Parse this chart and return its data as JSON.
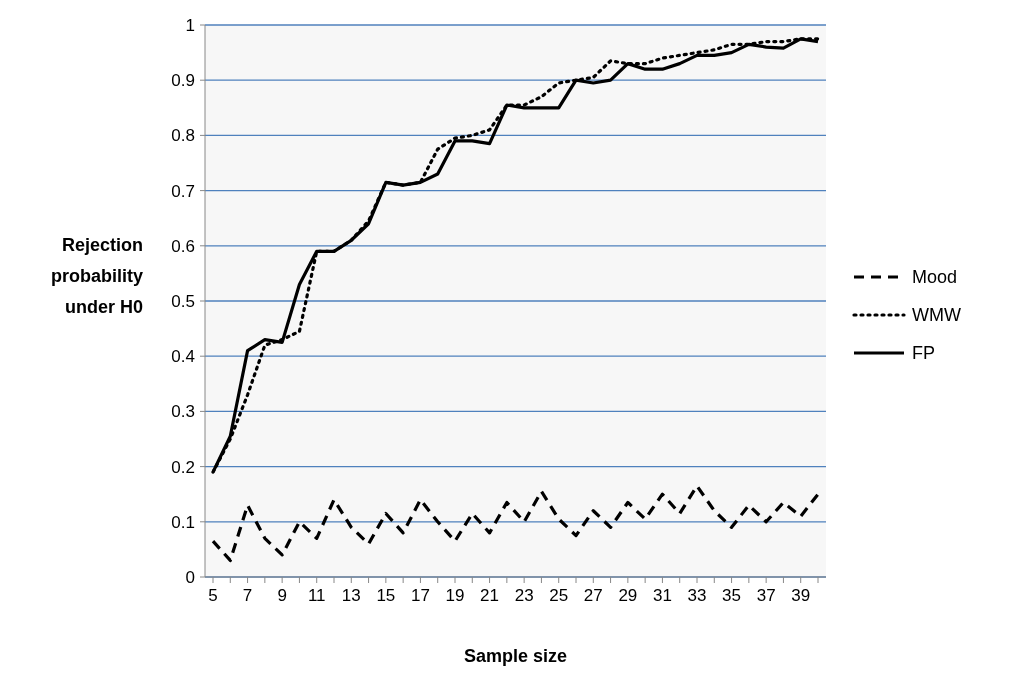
{
  "chart_data": {
    "type": "line",
    "xlabel": "Sample size",
    "ylabel": "Rejection probability under H0",
    "categories": [
      "5",
      null,
      "7",
      null,
      "9",
      null,
      "11",
      null,
      "13",
      null,
      "15",
      null,
      "17",
      null,
      "19",
      null,
      "21",
      null,
      "23",
      null,
      "25",
      null,
      "27",
      null,
      "29",
      null,
      "31",
      null,
      "33",
      null,
      "35",
      null,
      "37",
      null,
      "39",
      null
    ],
    "ylim": [
      0,
      1
    ],
    "yticks": [
      0,
      0.1,
      0.2,
      0.3,
      0.4,
      0.5,
      0.6,
      0.7,
      0.8,
      0.9,
      1
    ],
    "grid": "y",
    "legend": "right",
    "marker": "none",
    "series": [
      {
        "name": "Mood",
        "color": "#000000",
        "line_style": "dashed",
        "values": [
          0.065,
          0.03,
          0.13,
          0.07,
          0.04,
          0.1,
          0.07,
          0.14,
          0.09,
          0.06,
          0.115,
          0.08,
          0.14,
          0.1,
          0.065,
          0.115,
          0.08,
          0.135,
          0.1,
          0.155,
          0.105,
          0.075,
          0.12,
          0.09,
          0.135,
          0.105,
          0.15,
          0.115,
          0.165,
          0.12,
          0.09,
          0.13,
          0.1,
          0.135,
          0.11,
          0.15
        ]
      },
      {
        "name": "WMW",
        "color": "#000000",
        "line_style": "dotted",
        "values": [
          0.19,
          0.25,
          0.33,
          0.42,
          0.43,
          0.445,
          0.59,
          0.59,
          0.61,
          0.645,
          0.715,
          0.71,
          0.715,
          0.775,
          0.795,
          0.8,
          0.81,
          0.855,
          0.855,
          0.87,
          0.895,
          0.9,
          0.905,
          0.935,
          0.93,
          0.93,
          0.94,
          0.945,
          0.95,
          0.955,
          0.965,
          0.965,
          0.97,
          0.97,
          0.975,
          0.975
        ]
      },
      {
        "name": "FP",
        "color": "#000000",
        "line_style": "solid",
        "values": [
          0.19,
          0.255,
          0.41,
          0.43,
          0.425,
          0.53,
          0.59,
          0.59,
          0.61,
          0.64,
          0.715,
          0.71,
          0.715,
          0.73,
          0.79,
          0.79,
          0.785,
          0.855,
          0.85,
          0.85,
          0.85,
          0.9,
          0.895,
          0.9,
          0.93,
          0.92,
          0.92,
          0.93,
          0.945,
          0.945,
          0.95,
          0.965,
          0.96,
          0.958,
          0.975,
          0.97
        ]
      }
    ]
  }
}
